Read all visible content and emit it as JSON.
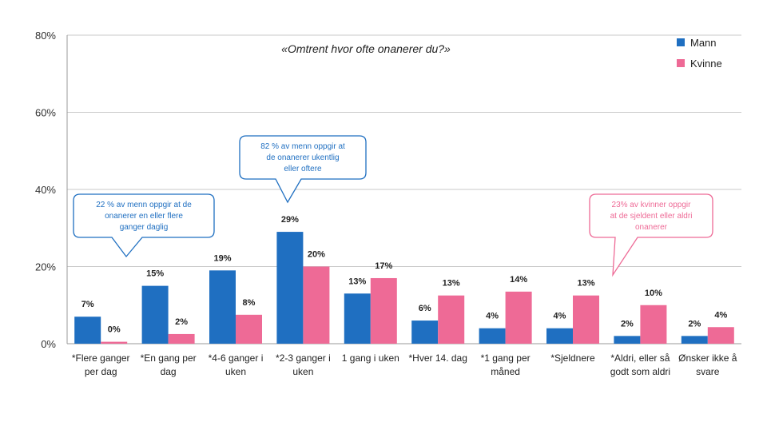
{
  "chart_data": {
    "type": "bar",
    "title": "«Omtrent hvor ofte onanerer du?»",
    "ylim": [
      0,
      80
    ],
    "yticks": [
      "0%",
      "20%",
      "40%",
      "60%",
      "80%"
    ],
    "grid": true,
    "legend_position": "top-right",
    "categories": [
      [
        "*Flere ganger",
        "per dag"
      ],
      [
        "*En gang per",
        "dag"
      ],
      [
        "*4-6 ganger i",
        "uken"
      ],
      [
        "*2-3 ganger i",
        "uken"
      ],
      [
        "1 gang i uken"
      ],
      [
        "*Hver 14. dag"
      ],
      [
        "*1 gang per",
        "måned"
      ],
      [
        "*Sjeldnere"
      ],
      [
        "*Aldri, eller så",
        "godt som aldri"
      ],
      [
        "Ønsker ikke å",
        "svare"
      ]
    ],
    "series": [
      {
        "name": "Mann",
        "color": "#1f6fc1",
        "values": [
          7,
          15,
          19,
          29,
          13,
          6,
          4,
          4,
          2,
          2
        ],
        "labels": [
          "7%",
          "15%",
          "19%",
          "29%",
          "13%",
          "6%",
          "4%",
          "4%",
          "2%",
          "2%"
        ]
      },
      {
        "name": "Kvinne",
        "color": "#ee6a96",
        "values": [
          0.5,
          2.5,
          7.5,
          20,
          17,
          12.5,
          13.5,
          12.5,
          10,
          4.3
        ],
        "labels": [
          "0%",
          "2%",
          "8%",
          "20%",
          "17%",
          "13%",
          "14%",
          "13%",
          "10%",
          "4%"
        ]
      }
    ],
    "annotations": [
      {
        "lines": [
          "22 % av menn oppgir at de",
          "onanerer en eller flere",
          "ganger daglig"
        ],
        "color": "#1f6fc1"
      },
      {
        "lines": [
          "82 % av menn oppgir at",
          "de onanerer ukentlig",
          "eller oftere"
        ],
        "color": "#1f6fc1"
      },
      {
        "lines": [
          "23% av kvinner oppgir",
          "at de sjeldent eller aldri",
          "onanerer"
        ],
        "color": "#ee6a96"
      }
    ]
  }
}
